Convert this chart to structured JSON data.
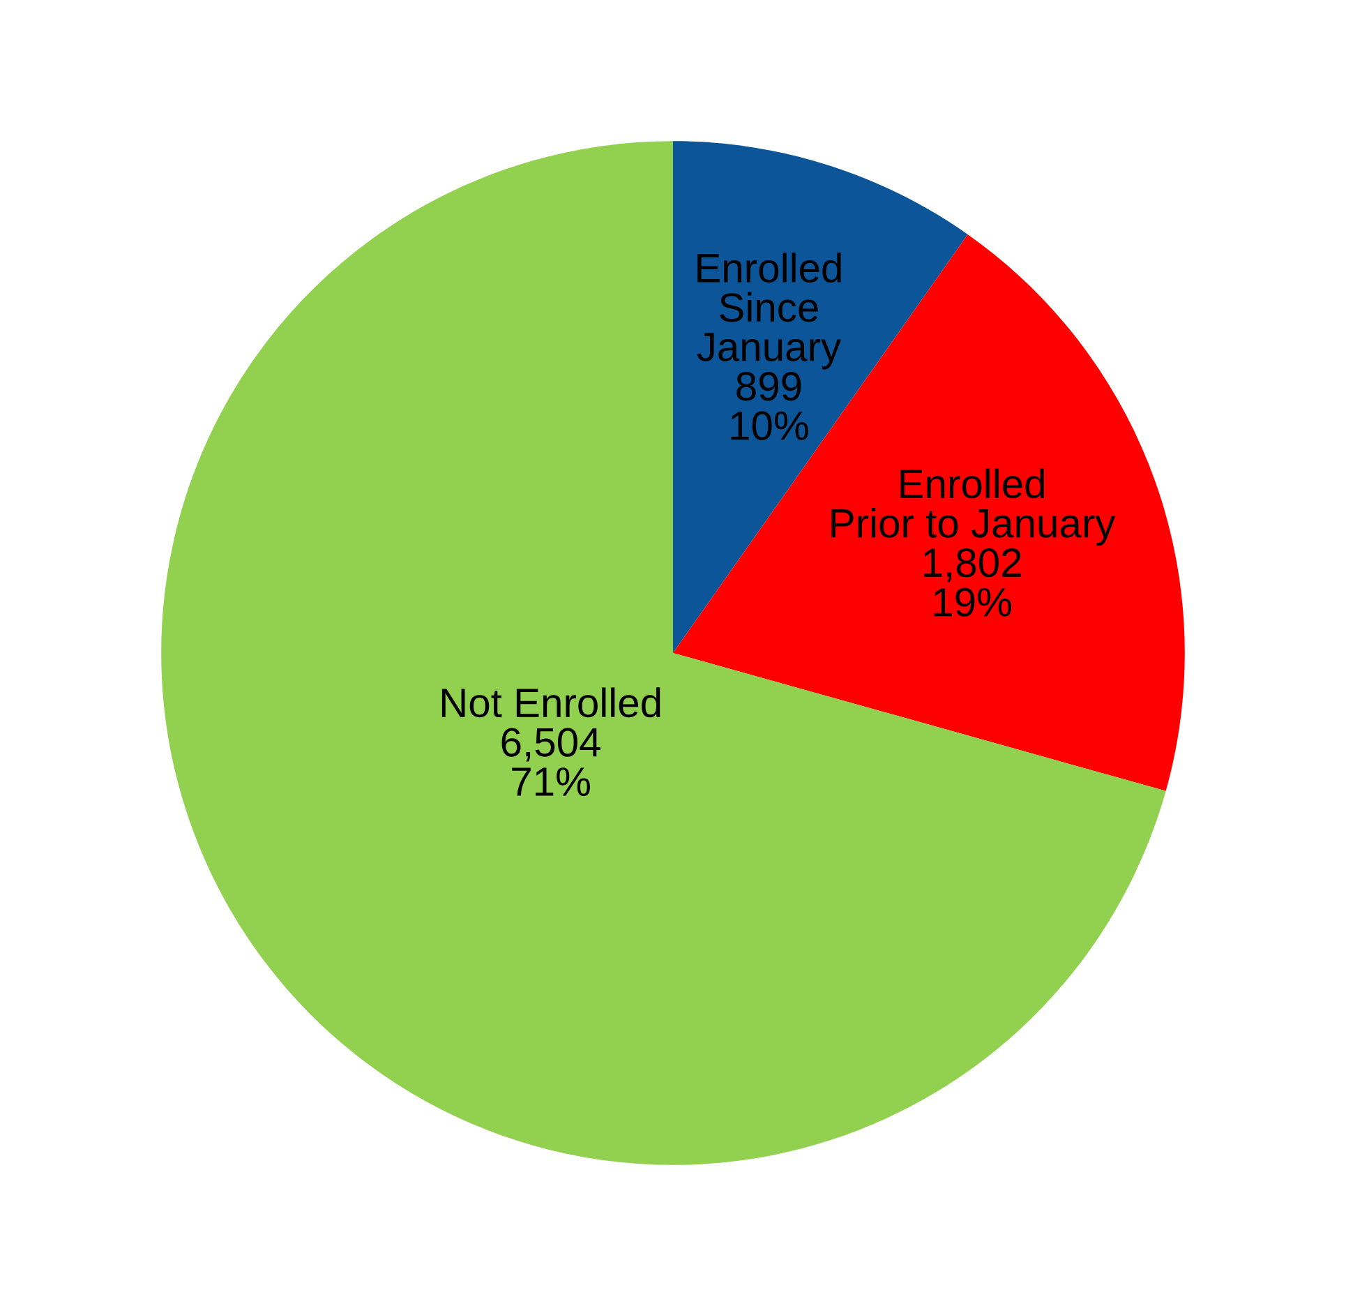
{
  "chart_data": {
    "type": "pie",
    "categories": [
      "Enrolled\nSince\nJanuary",
      "Enrolled\nPrior to January",
      "Not Enrolled"
    ],
    "values": [
      899,
      1802,
      6504
    ],
    "colors": [
      "#0b5598",
      "#fe0000",
      "#92d050"
    ],
    "value_labels": [
      "899\n10%",
      "1,802\n19%",
      "6,504\n71%"
    ],
    "legend": false
  }
}
